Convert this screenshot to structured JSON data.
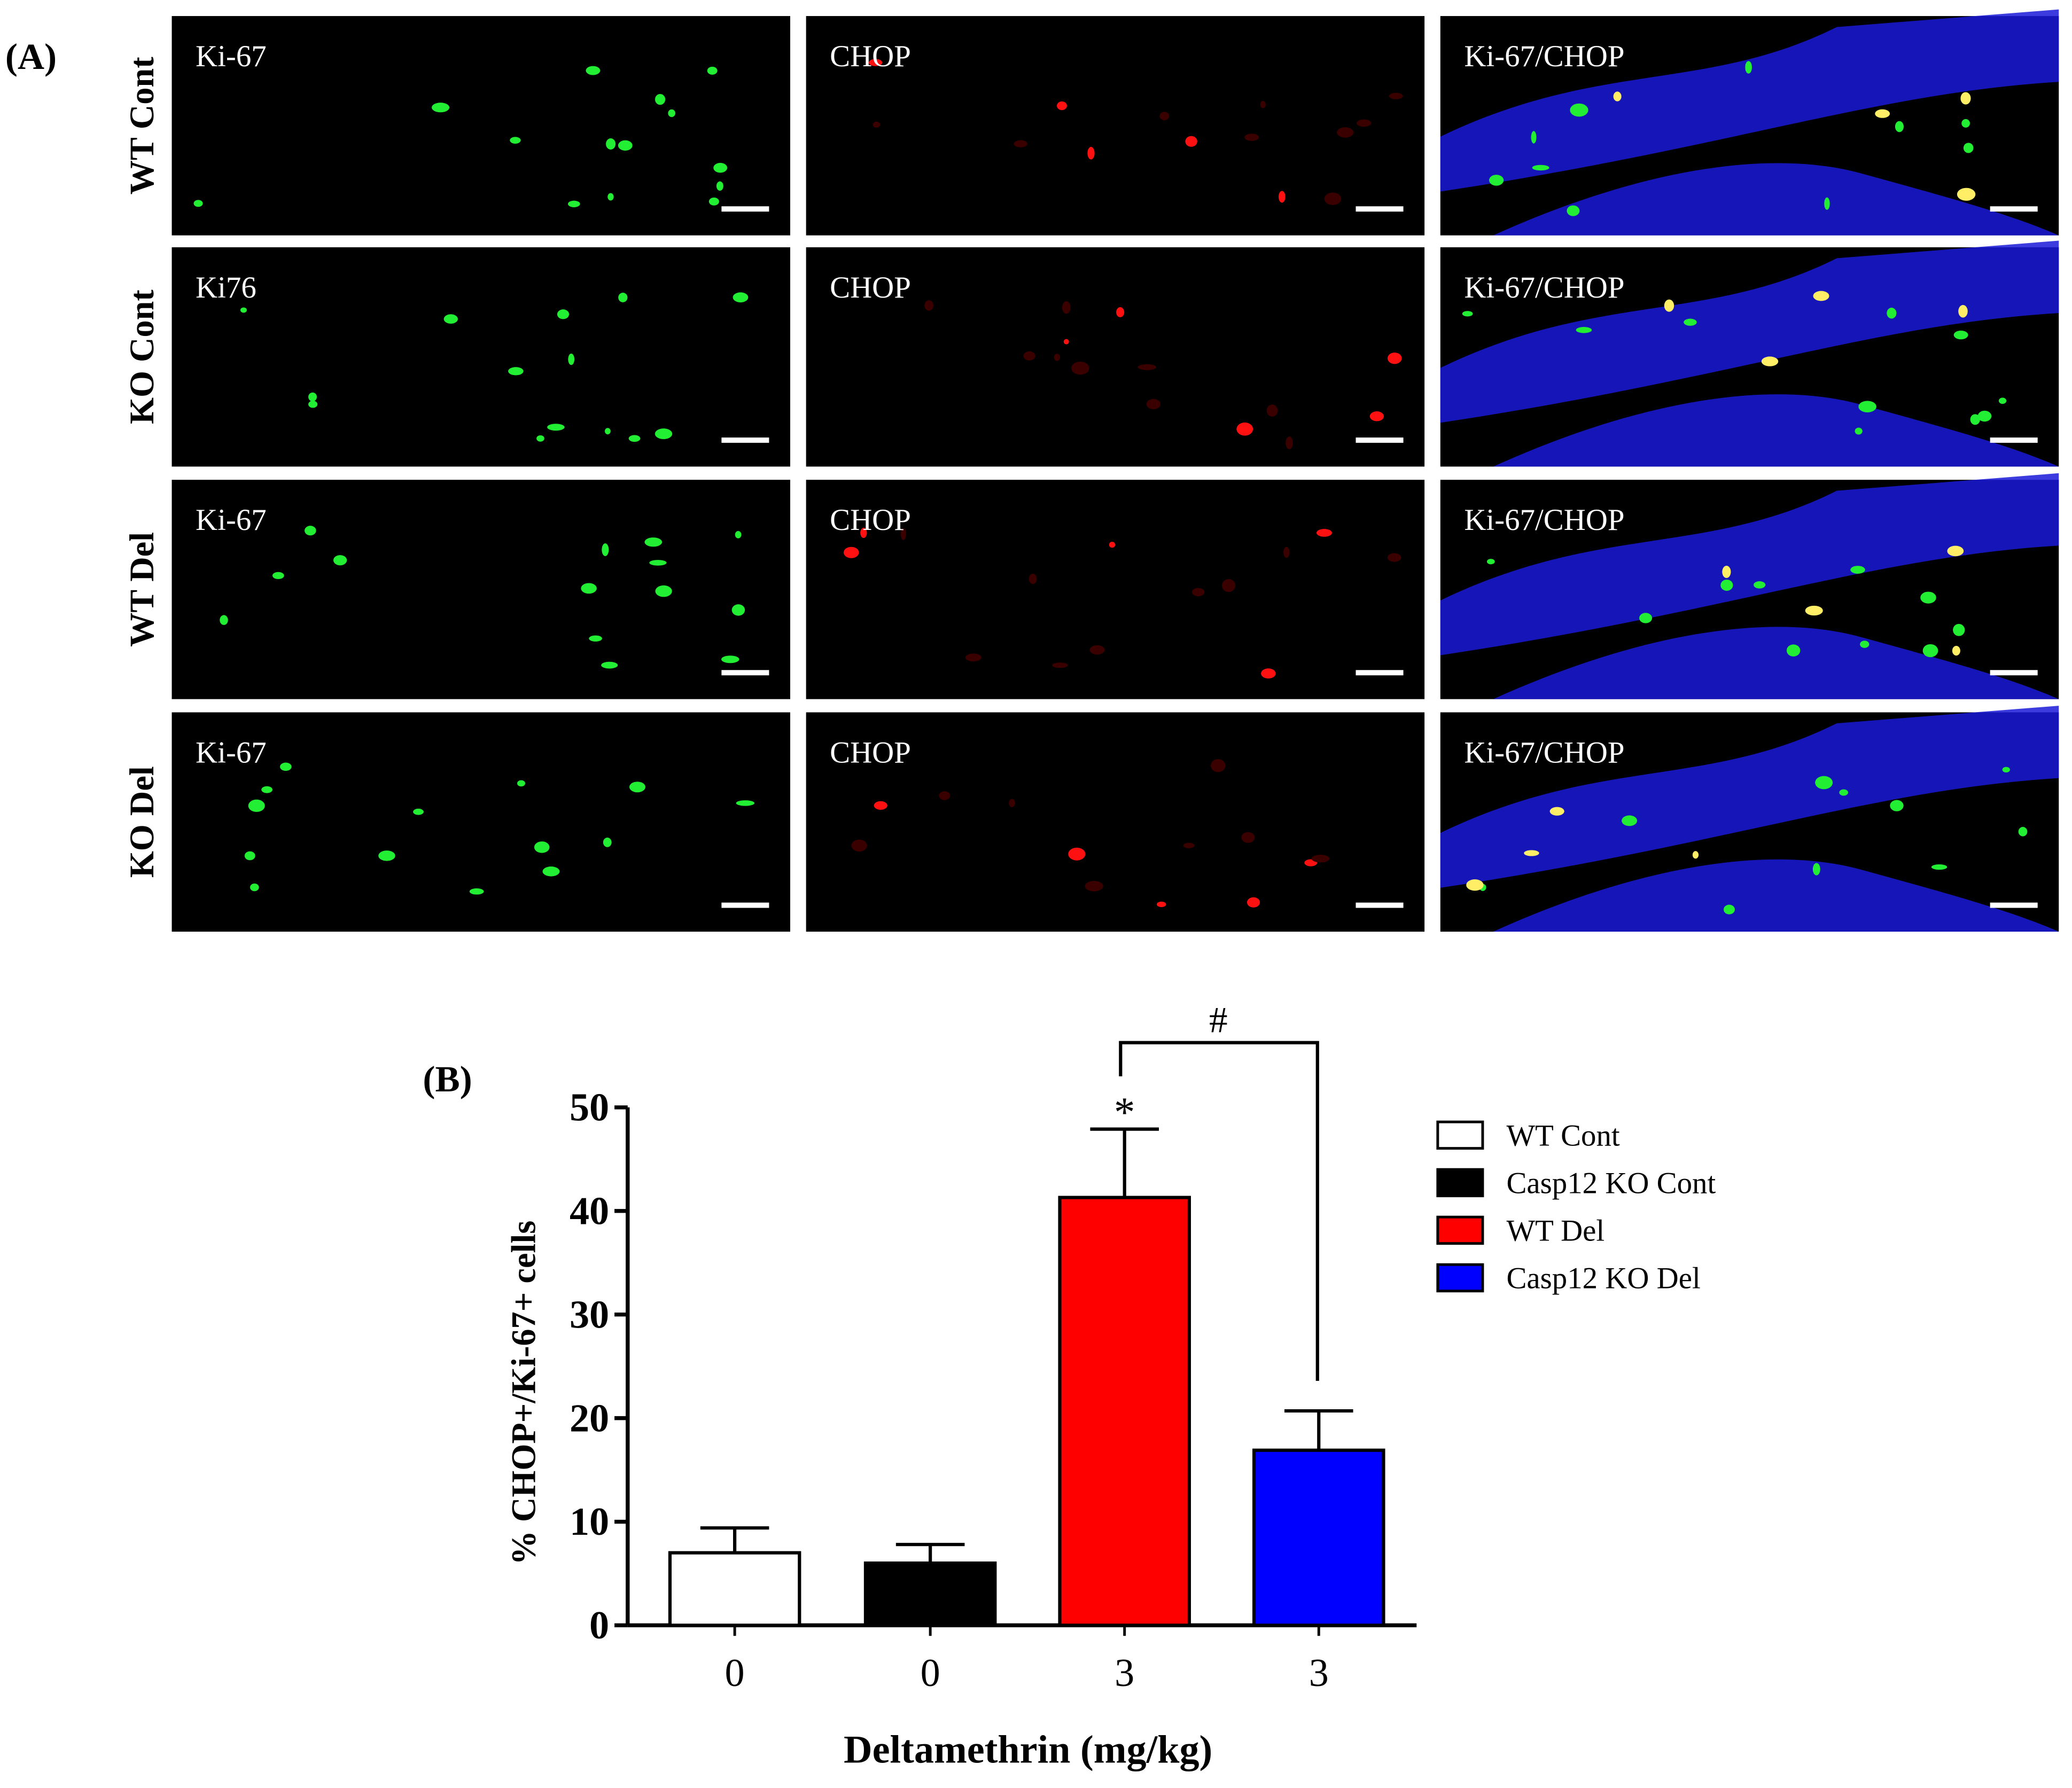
{
  "panel_a": {
    "label": "(A)",
    "rows": [
      {
        "label": "WT Cont",
        "panels": [
          "Ki-67",
          "CHOP",
          "Ki-67/CHOP"
        ]
      },
      {
        "label": "KO Cont",
        "panels": [
          "Ki76",
          "CHOP",
          "Ki-67/CHOP"
        ]
      },
      {
        "label": "WT Del",
        "panels": [
          "Ki-67",
          "CHOP",
          "Ki-67/CHOP"
        ]
      },
      {
        "label": "KO Del",
        "panels": [
          "Ki-67",
          "CHOP",
          "Ki-67/CHOP"
        ]
      }
    ]
  },
  "chart_data": {
    "type": "bar",
    "panel_label": "(B)",
    "y_label": "% CHOP+/Ki-67+ cells",
    "x_label": "Deltamethrin (mg/kg)",
    "categories": [
      "0",
      "0",
      "3",
      "3"
    ],
    "values": [
      7.0,
      6.0,
      41.3,
      16.9
    ],
    "errors": [
      2.4,
      1.8,
      6.6,
      3.8
    ],
    "colors": [
      "#ffffff",
      "#000000",
      "#ff0000",
      "#0000ff"
    ],
    "legend": [
      "WT Cont",
      "Casp12 KO Cont",
      "WT Del",
      "Casp12 KO Del"
    ],
    "ylim": [
      0,
      50
    ],
    "yticks": [
      0,
      10,
      20,
      30,
      40,
      50
    ],
    "annotations": [
      "*",
      "#"
    ]
  }
}
